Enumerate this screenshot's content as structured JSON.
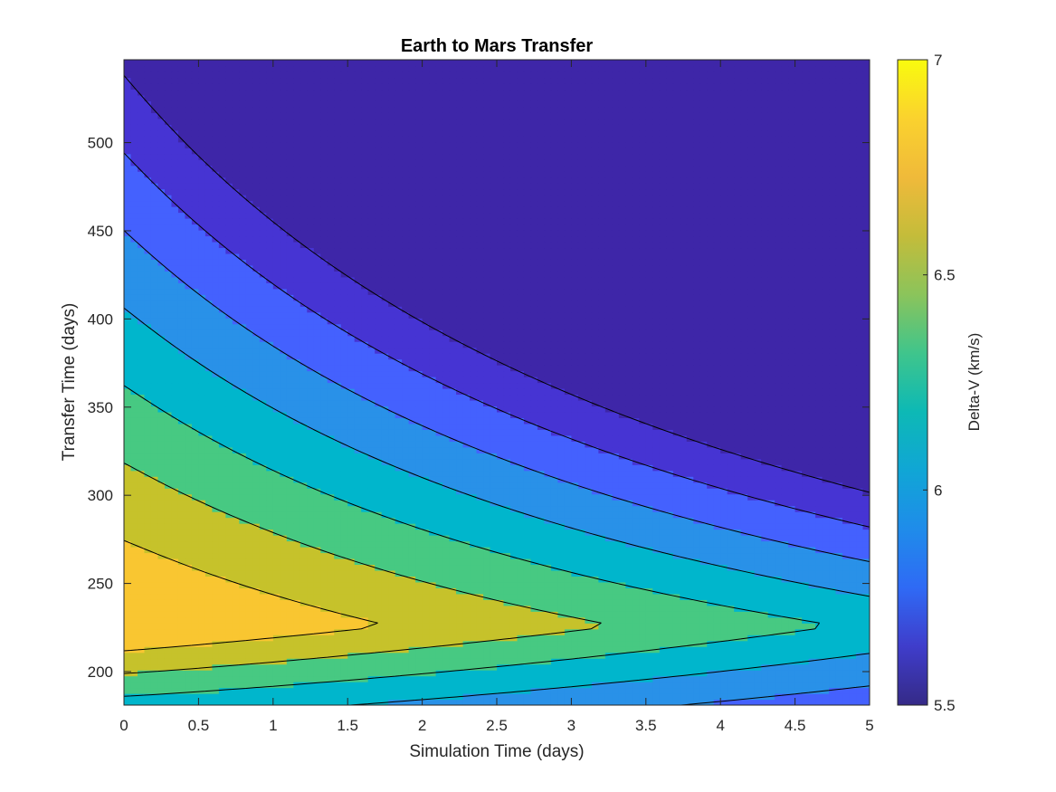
{
  "chart_data": {
    "type": "contourf",
    "title": "Earth to Mars Transfer",
    "xlabel": "Simulation Time (days)",
    "ylabel": "Transfer Time (days)",
    "colorbar_label": "Delta-V (km/s)",
    "xlim": [
      0,
      5
    ],
    "ylim": [
      181,
      547
    ],
    "x_ticks": [
      "0",
      "0.5",
      "1",
      "1.5",
      "2",
      "2.5",
      "3",
      "3.5",
      "4",
      "4.5",
      "5"
    ],
    "y_ticks": [
      "200",
      "250",
      "300",
      "350",
      "400",
      "450",
      "500"
    ],
    "colorbar_ticks": [
      "5.5",
      "6",
      "6.5",
      "7"
    ],
    "colorbar_range": [
      5.5,
      7.0
    ],
    "levels": [
      5.6,
      5.8,
      6.0,
      6.2,
      6.4,
      6.6,
      6.8
    ],
    "colormap": "parula",
    "fill_colors": [
      "#3E26A8",
      "#4634D3",
      "#4461FE",
      "#2991E8",
      "#00B6CC",
      "#47C982",
      "#C6C22B",
      "#F9C631",
      "#F9F719"
    ]
  }
}
